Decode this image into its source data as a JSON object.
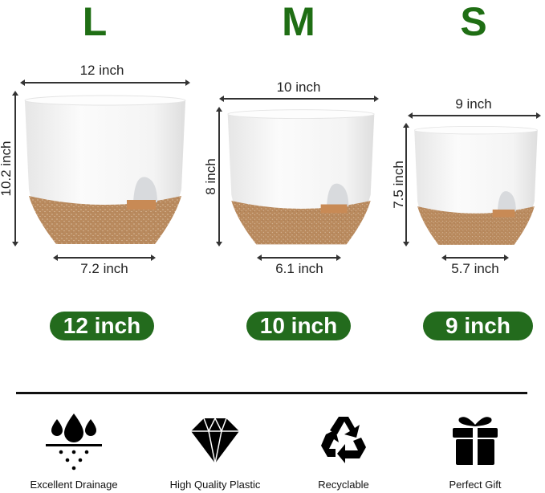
{
  "sizes": [
    {
      "letter": "L",
      "top_width": "12 inch",
      "height": "10.2 inch",
      "bottom_width": "7.2 inch",
      "badge": "12 inch"
    },
    {
      "letter": "M",
      "top_width": "10 inch",
      "height": "8 inch",
      "bottom_width": "6.1 inch",
      "badge": "10 inch"
    },
    {
      "letter": "S",
      "top_width": "9 inch",
      "height": "7.5 inch",
      "bottom_width": "5.7 inch",
      "badge": "9 inch"
    }
  ],
  "features": [
    {
      "label": "Excellent Drainage",
      "icon": "water-drainage-icon"
    },
    {
      "label": "High Quality Plastic",
      "icon": "diamond-icon"
    },
    {
      "label": "Recyclable",
      "icon": "recycle-icon"
    },
    {
      "label": "Perfect Gift",
      "icon": "gift-icon"
    }
  ],
  "colors": {
    "accent_green": "#236b1d",
    "pot_white": "#f6f6f6",
    "pot_base": "#b98a5e"
  }
}
